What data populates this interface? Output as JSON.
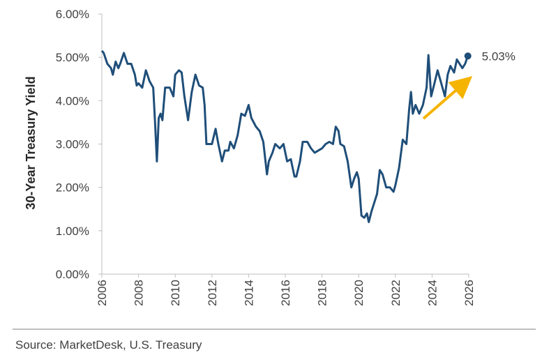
{
  "chart_data": {
    "type": "line",
    "y_label": "30-Year Treasury Yield",
    "source": "Source: MarketDesk, U.S. Treasury",
    "series": [
      {
        "name": "30-Year Treasury Yield",
        "color": "#1f4e79",
        "x": [
          2006.0,
          2006.1,
          2006.3,
          2006.5,
          2006.6,
          2006.75,
          2006.9,
          2007.0,
          2007.2,
          2007.4,
          2007.6,
          2007.8,
          2007.9,
          2008.0,
          2008.2,
          2008.4,
          2008.6,
          2008.8,
          2008.9,
          2009.0,
          2009.1,
          2009.2,
          2009.3,
          2009.45,
          2009.7,
          2009.9,
          2010.0,
          2010.2,
          2010.35,
          2010.5,
          2010.7,
          2010.9,
          2011.1,
          2011.3,
          2011.5,
          2011.6,
          2011.7,
          2011.85,
          2012.0,
          2012.2,
          2012.35,
          2012.55,
          2012.7,
          2012.9,
          2013.0,
          2013.2,
          2013.4,
          2013.6,
          2013.8,
          2014.0,
          2014.15,
          2014.4,
          2014.6,
          2014.8,
          2015.0,
          2015.1,
          2015.3,
          2015.45,
          2015.7,
          2015.9,
          2016.0,
          2016.1,
          2016.3,
          2016.5,
          2016.6,
          2016.8,
          2016.95,
          2017.2,
          2017.4,
          2017.6,
          2017.8,
          2018.0,
          2018.2,
          2018.4,
          2018.6,
          2018.75,
          2018.9,
          2019.0,
          2019.2,
          2019.4,
          2019.6,
          2019.75,
          2019.9,
          2020.0,
          2020.15,
          2020.3,
          2020.45,
          2020.55,
          2020.7,
          2020.85,
          2021.0,
          2021.15,
          2021.3,
          2021.5,
          2021.7,
          2021.9,
          2022.0,
          2022.2,
          2022.4,
          2022.6,
          2022.75,
          2022.85,
          2022.95,
          2023.1,
          2023.3,
          2023.5,
          2023.7,
          2023.8,
          2023.95,
          2024.1,
          2024.3,
          2024.5,
          2024.7,
          2024.85,
          2025.0,
          2025.2,
          2025.35,
          2025.5,
          2025.65,
          2025.8,
          2025.95
        ],
        "values": [
          5.15,
          5.1,
          4.85,
          4.75,
          4.6,
          4.9,
          4.75,
          4.85,
          5.1,
          4.85,
          4.85,
          4.6,
          4.35,
          4.4,
          4.3,
          4.7,
          4.45,
          4.3,
          3.5,
          2.6,
          3.6,
          3.7,
          3.55,
          4.3,
          4.3,
          4.1,
          4.6,
          4.7,
          4.65,
          4.1,
          3.55,
          4.2,
          4.6,
          4.35,
          4.3,
          3.9,
          3.0,
          3.0,
          3.0,
          3.35,
          3.0,
          2.6,
          2.85,
          2.85,
          3.05,
          2.9,
          3.2,
          3.7,
          3.65,
          3.9,
          3.6,
          3.4,
          3.3,
          3.05,
          2.3,
          2.6,
          2.8,
          3.0,
          2.9,
          3.0,
          2.8,
          2.6,
          2.65,
          2.25,
          2.25,
          2.6,
          3.05,
          3.05,
          2.9,
          2.8,
          2.85,
          2.9,
          3.0,
          3.05,
          3.0,
          3.4,
          3.3,
          3.0,
          2.95,
          2.6,
          2.0,
          2.2,
          2.35,
          2.2,
          1.35,
          1.3,
          1.4,
          1.2,
          1.45,
          1.65,
          1.85,
          2.4,
          2.3,
          2.0,
          2.0,
          1.9,
          2.05,
          2.45,
          3.1,
          3.0,
          3.8,
          4.2,
          3.7,
          3.9,
          3.7,
          3.9,
          4.3,
          5.05,
          4.1,
          4.35,
          4.7,
          4.4,
          4.1,
          4.6,
          4.8,
          4.65,
          4.95,
          4.85,
          4.75,
          4.85,
          5.03
        ]
      }
    ],
    "annotations": [
      {
        "text": "5.03%",
        "x": 2025.95,
        "y": 5.03
      }
    ],
    "xlim": [
      2006,
      2026
    ],
    "xticks": [
      2006,
      2008,
      2010,
      2012,
      2014,
      2016,
      2018,
      2020,
      2022,
      2024,
      2026
    ],
    "ylim": [
      0,
      6
    ],
    "yticks": [
      {
        "value": 0,
        "label": "0.00%"
      },
      {
        "value": 1,
        "label": "1.00%"
      },
      {
        "value": 2,
        "label": "2.00%"
      },
      {
        "value": 3,
        "label": "3.00%"
      },
      {
        "value": 4,
        "label": "4.00%"
      },
      {
        "value": 5,
        "label": "5.00%"
      },
      {
        "value": 6,
        "label": "6.00%"
      }
    ]
  }
}
